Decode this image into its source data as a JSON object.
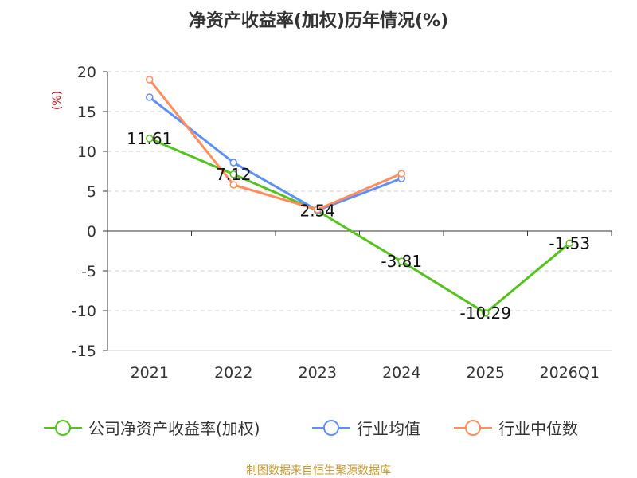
{
  "chart_data": {
    "type": "line",
    "title": "净资产收益率(加权)历年情况(%)",
    "ylabel": "(%)",
    "xlabel": "",
    "categories": [
      "2021",
      "2022",
      "2023",
      "2024",
      "2025",
      "2026Q1"
    ],
    "ylim": [
      -15,
      20
    ],
    "yticks": [
      20,
      15,
      10,
      5,
      0,
      -5,
      -10,
      -15
    ],
    "grid": true,
    "legend_position": "bottom",
    "series": [
      {
        "name": "公司净资产收益率(加权)",
        "color": "#52c41a",
        "values": [
          11.61,
          7.12,
          2.54,
          -3.81,
          -10.29,
          -1.53
        ],
        "labels": [
          "11.61",
          "7.12",
          "2.54",
          "-3.81",
          "-10.29",
          "-1.53"
        ]
      },
      {
        "name": "行业均值",
        "color": "#5b8ff9",
        "values": [
          16.8,
          8.6,
          2.6,
          6.6,
          null,
          null
        ]
      },
      {
        "name": "行业中位数",
        "color": "#ff8c5a",
        "values": [
          19.0,
          5.8,
          2.7,
          7.2,
          null,
          null
        ]
      }
    ]
  },
  "footer": {
    "source": "制图数据来自恒生聚源数据库"
  }
}
